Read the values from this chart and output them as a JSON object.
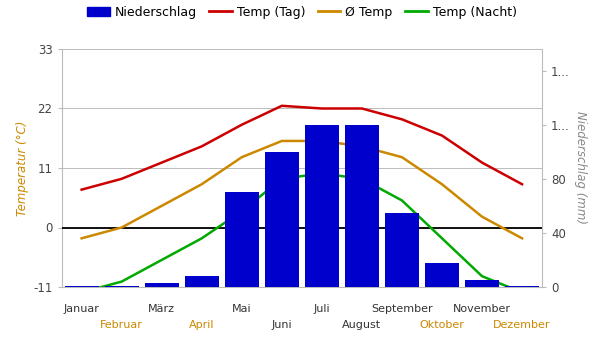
{
  "months_top": [
    "Januar",
    "März",
    "Mai",
    "Juli",
    "September",
    "November"
  ],
  "months_bottom": [
    "Februar",
    "April",
    "Juni",
    "August",
    "Oktober",
    "Dezember"
  ],
  "months_top_pos": [
    0,
    2,
    4,
    6,
    8,
    10
  ],
  "months_bottom_pos": [
    1,
    3,
    5,
    7,
    9,
    11
  ],
  "precipitation": [
    1,
    1,
    3,
    8,
    70,
    100,
    120,
    120,
    55,
    18,
    5,
    1
  ],
  "temp_day": [
    7,
    9,
    12,
    15,
    19,
    22.5,
    22,
    22,
    20,
    17,
    12,
    8
  ],
  "temp_avg": [
    -2,
    0,
    4,
    8,
    13,
    16,
    16,
    15,
    13,
    8,
    2,
    -2
  ],
  "temp_night": [
    -12,
    -10,
    -6,
    -2,
    3,
    9,
    10,
    9,
    5,
    -2,
    -9,
    -12
  ],
  "ylim_temp": [
    -11,
    33
  ],
  "ylim_precip": [
    0,
    176
  ],
  "yticks_temp": [
    -11,
    0,
    11,
    22,
    33
  ],
  "yticks_precip_right": [
    0,
    40,
    80,
    120,
    160
  ],
  "yticks_precip_right_labels": [
    "0",
    "40",
    "80",
    "1...",
    "1..."
  ],
  "color_precip": "#0000cc",
  "color_temp_day": "#cc0000",
  "color_temp_avg": "#cc8800",
  "color_temp_night": "#00aa00",
  "color_zero_line": "#000000",
  "background_color": "#ffffff",
  "grid_color": "#bbbbbb",
  "legend_items": [
    "Niederschlag",
    "Temp (Tag)",
    "Ø Temp",
    "Temp (Nacht)"
  ],
  "ylabel_left": "Temperatur (°C)",
  "ylabel_right": "Niederschlag (mm)",
  "months_bottom_orange": [
    "Februar",
    "April",
    "Oktober",
    "Dezember"
  ]
}
